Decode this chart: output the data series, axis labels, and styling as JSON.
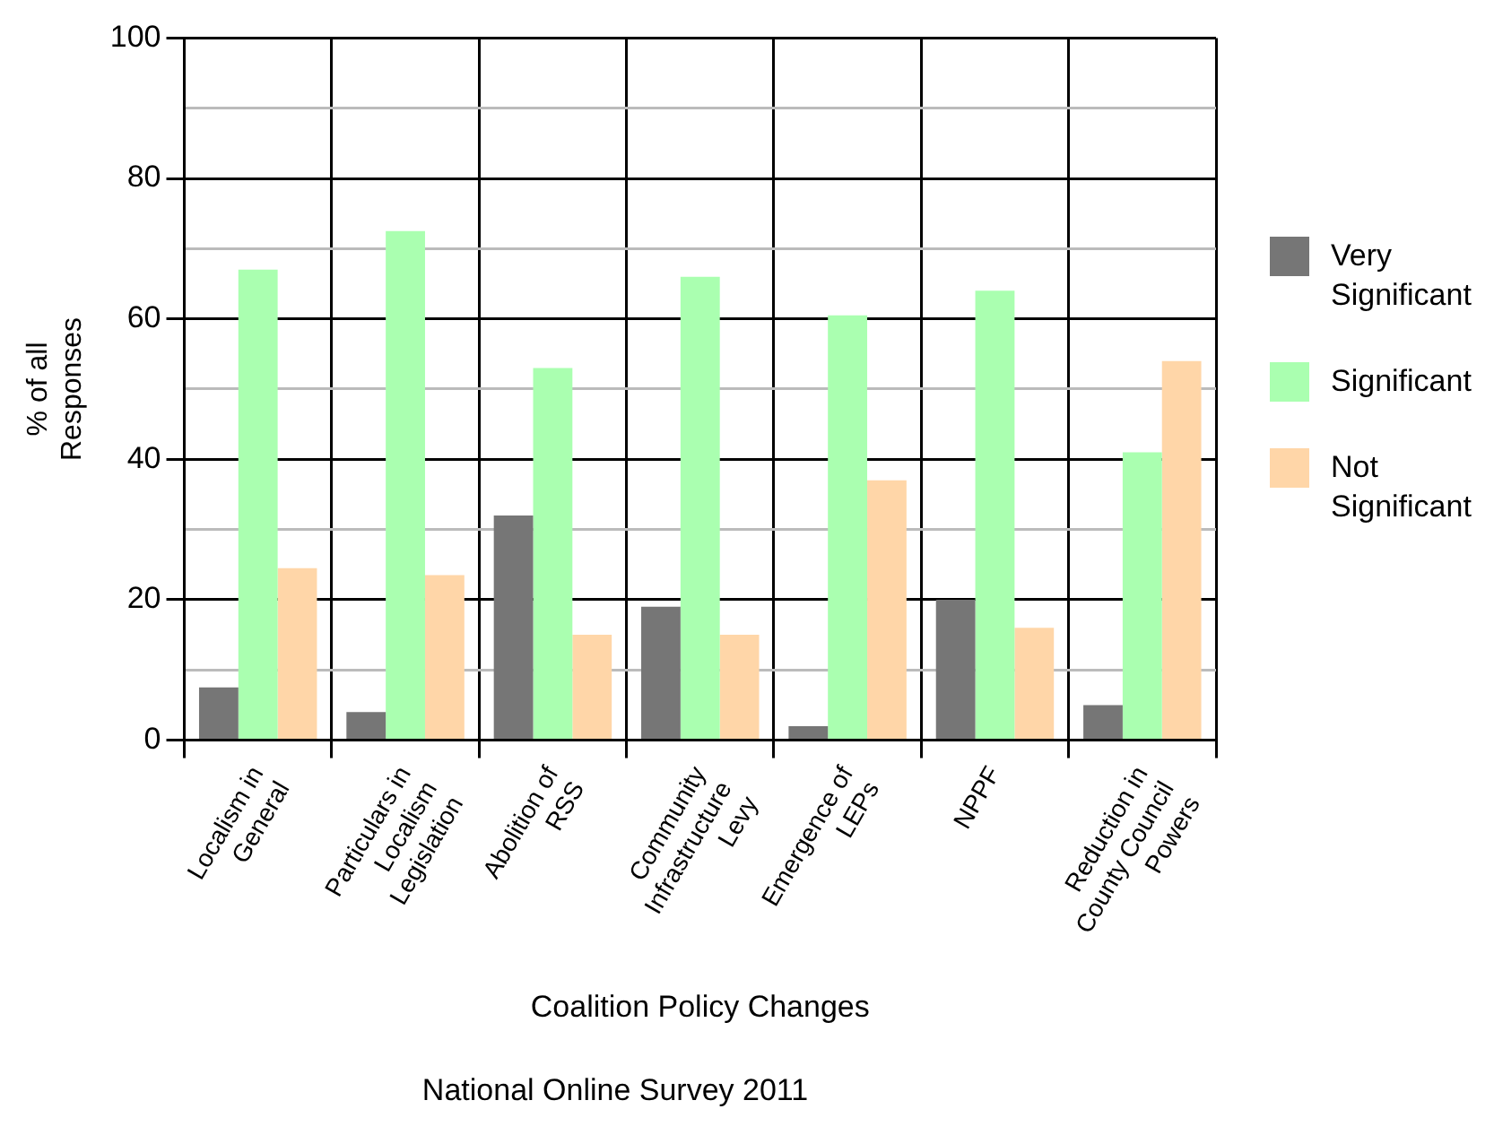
{
  "chart_data": {
    "type": "bar",
    "title": "National Online Survey 2011",
    "xlabel": "Coalition Policy Changes",
    "ylabel": "% of all\nResponses",
    "categories": [
      "Localism in\nGeneral",
      "Particulars in\nLocalism\nLegislation",
      "Abolition of\nRSS",
      "Community\nInfrastructure\nLevy",
      "Emergence of\nLEPs",
      "NPPF",
      "Reduction in\nCounty Council\nPowers"
    ],
    "series": [
      {
        "name": "Very\nSignificant",
        "color": "#767676",
        "values": [
          7.5,
          4,
          32,
          19,
          2,
          20,
          5
        ]
      },
      {
        "name": "Significant",
        "color": "#aaffb0",
        "values": [
          67,
          72.5,
          53,
          66,
          60.5,
          64,
          41
        ]
      },
      {
        "name": "Not\nSignificant",
        "color": "#ffd6a8",
        "values": [
          24.5,
          23.5,
          15,
          15,
          37,
          16,
          54
        ]
      }
    ],
    "ylim": [
      0,
      100
    ],
    "yticks": [
      0,
      {
        "value": 10,
        "label": null
      },
      20,
      {
        "value": 30,
        "label": null
      },
      40,
      {
        "value": 50,
        "label": null
      },
      60,
      {
        "value": 70,
        "label": null
      },
      80,
      {
        "value": 90,
        "label": null
      },
      100
    ],
    "grid": true,
    "legend": "right"
  }
}
